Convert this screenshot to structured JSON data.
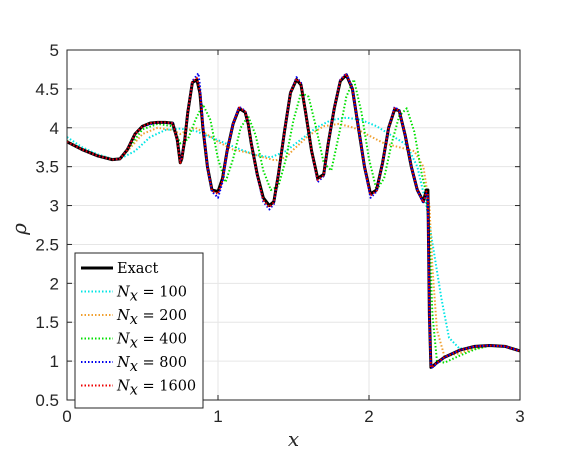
{
  "chart_data": {
    "type": "line",
    "xlabel": "x",
    "ylabel": "ρ",
    "xlim": [
      0,
      3
    ],
    "ylim": [
      0.5,
      5
    ],
    "xticks": [
      "0",
      "1",
      "2",
      "3"
    ],
    "yticks": [
      "0.5",
      "1",
      "1.5",
      "2",
      "2.5",
      "3",
      "3.5",
      "4",
      "4.5",
      "5"
    ],
    "grid": true,
    "legend_position": "bottom-left",
    "series": [
      {
        "name": "Exact",
        "color": "#000000",
        "style": "solid",
        "x": [
          0,
          0.1,
          0.2,
          0.3,
          0.35,
          0.4,
          0.45,
          0.5,
          0.55,
          0.6,
          0.65,
          0.7,
          0.73,
          0.75,
          0.76,
          0.78,
          0.8,
          0.83,
          0.86,
          0.88,
          0.9,
          0.93,
          0.96,
          1.0,
          1.03,
          1.06,
          1.1,
          1.14,
          1.18,
          1.2,
          1.22,
          1.26,
          1.3,
          1.34,
          1.37,
          1.4,
          1.44,
          1.48,
          1.52,
          1.55,
          1.58,
          1.62,
          1.66,
          1.7,
          1.73,
          1.77,
          1.81,
          1.85,
          1.89,
          1.93,
          1.97,
          2.01,
          2.05,
          2.09,
          2.13,
          2.17,
          2.2,
          2.24,
          2.28,
          2.32,
          2.36,
          2.38,
          2.39,
          2.4,
          2.41,
          2.42,
          2.45,
          2.5,
          2.6,
          2.7,
          2.8,
          2.9,
          3.0
        ],
        "y": [
          3.82,
          3.72,
          3.64,
          3.59,
          3.6,
          3.72,
          3.92,
          4.02,
          4.06,
          4.07,
          4.07,
          4.06,
          3.85,
          3.55,
          3.6,
          3.85,
          4.2,
          4.58,
          4.62,
          4.45,
          4.0,
          3.5,
          3.2,
          3.18,
          3.35,
          3.7,
          4.05,
          4.25,
          4.2,
          4.05,
          3.8,
          3.4,
          3.1,
          3.0,
          3.05,
          3.4,
          3.95,
          4.45,
          4.62,
          4.55,
          4.2,
          3.7,
          3.35,
          3.4,
          3.8,
          4.25,
          4.6,
          4.68,
          4.5,
          4.0,
          3.5,
          3.15,
          3.2,
          3.55,
          4.0,
          4.24,
          4.22,
          3.9,
          3.5,
          3.2,
          3.05,
          3.2,
          3.2,
          1.6,
          0.92,
          0.93,
          0.98,
          1.05,
          1.14,
          1.19,
          1.2,
          1.19,
          1.13
        ]
      },
      {
        "name": "N_x = 100",
        "color": "#00e5e5",
        "style": "dotted",
        "x": [
          0,
          0.1,
          0.2,
          0.3,
          0.35,
          0.45,
          0.55,
          0.65,
          0.75,
          0.85,
          0.95,
          1.05,
          1.15,
          1.25,
          1.35,
          1.45,
          1.55,
          1.65,
          1.75,
          1.85,
          1.95,
          2.05,
          2.15,
          2.25,
          2.32,
          2.38,
          2.43,
          2.48,
          2.53,
          2.6,
          2.7,
          2.8,
          2.9,
          3.0
        ],
        "y": [
          3.88,
          3.75,
          3.66,
          3.6,
          3.6,
          3.7,
          3.88,
          3.97,
          3.99,
          3.96,
          3.88,
          3.8,
          3.72,
          3.65,
          3.62,
          3.7,
          3.85,
          4.0,
          4.1,
          4.13,
          4.1,
          4.02,
          3.9,
          3.78,
          3.5,
          3.0,
          2.4,
          1.8,
          1.3,
          1.16,
          1.17,
          1.2,
          1.19,
          1.14
        ]
      },
      {
        "name": "N_x = 200",
        "color": "#f0a030",
        "style": "dotted",
        "x": [
          0,
          0.1,
          0.2,
          0.3,
          0.35,
          0.4,
          0.5,
          0.6,
          0.7,
          0.75,
          0.8,
          0.85,
          0.9,
          1.0,
          1.1,
          1.2,
          1.3,
          1.38,
          1.45,
          1.5,
          1.6,
          1.7,
          1.8,
          1.9,
          2.0,
          2.1,
          2.2,
          2.3,
          2.36,
          2.4,
          2.42,
          2.45,
          2.5,
          2.6,
          2.7,
          2.8,
          2.9,
          3.0
        ],
        "y": [
          3.83,
          3.73,
          3.65,
          3.6,
          3.6,
          3.7,
          3.92,
          4.0,
          3.97,
          3.92,
          3.97,
          4.0,
          3.95,
          3.82,
          3.72,
          3.68,
          3.62,
          3.58,
          3.62,
          3.72,
          3.9,
          4.02,
          4.05,
          4.0,
          3.9,
          3.8,
          3.75,
          3.7,
          3.5,
          3.0,
          2.2,
          1.4,
          1.06,
          1.1,
          1.16,
          1.2,
          1.19,
          1.13
        ]
      },
      {
        "name": "N_x = 400",
        "color": "#00e000",
        "style": "dotted",
        "x": [
          0,
          0.1,
          0.2,
          0.3,
          0.35,
          0.4,
          0.5,
          0.6,
          0.7,
          0.75,
          0.8,
          0.85,
          0.9,
          0.95,
          1.0,
          1.05,
          1.1,
          1.15,
          1.2,
          1.25,
          1.3,
          1.35,
          1.4,
          1.45,
          1.5,
          1.55,
          1.6,
          1.65,
          1.7,
          1.75,
          1.8,
          1.85,
          1.9,
          1.95,
          2.0,
          2.05,
          2.1,
          2.15,
          2.2,
          2.25,
          2.3,
          2.35,
          2.38,
          2.4,
          2.42,
          2.45,
          2.5,
          2.6,
          2.7,
          2.8,
          2.9,
          3.0
        ],
        "y": [
          3.83,
          3.72,
          3.64,
          3.59,
          3.6,
          3.72,
          3.98,
          4.05,
          4.02,
          3.8,
          3.85,
          4.1,
          4.3,
          4.1,
          3.6,
          3.3,
          3.6,
          4.0,
          4.15,
          3.9,
          3.45,
          3.2,
          3.25,
          3.6,
          4.1,
          4.45,
          4.4,
          4.0,
          3.55,
          3.45,
          3.9,
          4.4,
          4.62,
          4.2,
          3.6,
          3.2,
          3.35,
          3.8,
          4.15,
          4.25,
          3.95,
          3.4,
          3.15,
          2.6,
          1.6,
          1.0,
          0.98,
          1.07,
          1.15,
          1.2,
          1.19,
          1.13
        ]
      },
      {
        "name": "N_x = 800",
        "color": "#0000ee",
        "style": "dotted",
        "x": [
          0,
          0.1,
          0.2,
          0.3,
          0.35,
          0.4,
          0.45,
          0.5,
          0.6,
          0.7,
          0.73,
          0.75,
          0.76,
          0.78,
          0.8,
          0.83,
          0.87,
          0.88,
          0.9,
          0.93,
          0.96,
          1.0,
          1.03,
          1.06,
          1.1,
          1.14,
          1.18,
          1.2,
          1.22,
          1.26,
          1.3,
          1.34,
          1.37,
          1.4,
          1.44,
          1.48,
          1.52,
          1.55,
          1.58,
          1.62,
          1.66,
          1.7,
          1.73,
          1.77,
          1.81,
          1.85,
          1.89,
          1.93,
          1.97,
          2.01,
          2.05,
          2.09,
          2.13,
          2.17,
          2.2,
          2.24,
          2.28,
          2.32,
          2.36,
          2.38,
          2.39,
          2.4,
          2.41,
          2.42,
          2.45,
          2.5,
          2.6,
          2.7,
          2.8,
          2.9,
          3.0
        ],
        "y": [
          3.82,
          3.72,
          3.64,
          3.59,
          3.6,
          3.72,
          3.92,
          4.02,
          4.07,
          4.06,
          3.85,
          3.57,
          3.62,
          3.85,
          4.2,
          4.6,
          4.7,
          4.55,
          4.05,
          3.5,
          3.18,
          3.1,
          3.3,
          3.7,
          4.05,
          4.27,
          4.22,
          4.05,
          3.8,
          3.38,
          3.05,
          2.95,
          3.02,
          3.4,
          3.95,
          4.45,
          4.65,
          4.58,
          4.2,
          3.7,
          3.3,
          3.38,
          3.8,
          4.25,
          4.62,
          4.7,
          4.5,
          4.0,
          3.5,
          3.1,
          3.18,
          3.55,
          4.0,
          4.27,
          4.22,
          3.9,
          3.5,
          3.2,
          3.03,
          3.15,
          3.1,
          1.5,
          0.93,
          0.92,
          0.97,
          1.05,
          1.14,
          1.19,
          1.2,
          1.19,
          1.13
        ]
      },
      {
        "name": "N_x = 1600",
        "color": "#ee0000",
        "style": "dotted",
        "x": [
          0,
          0.1,
          0.2,
          0.3,
          0.35,
          0.4,
          0.45,
          0.5,
          0.55,
          0.6,
          0.65,
          0.7,
          0.73,
          0.75,
          0.76,
          0.78,
          0.8,
          0.83,
          0.86,
          0.88,
          0.9,
          0.93,
          0.96,
          1.0,
          1.03,
          1.06,
          1.1,
          1.14,
          1.18,
          1.2,
          1.22,
          1.26,
          1.3,
          1.34,
          1.37,
          1.4,
          1.44,
          1.48,
          1.52,
          1.55,
          1.58,
          1.62,
          1.66,
          1.7,
          1.73,
          1.77,
          1.81,
          1.85,
          1.89,
          1.93,
          1.97,
          2.01,
          2.05,
          2.09,
          2.13,
          2.17,
          2.2,
          2.24,
          2.28,
          2.32,
          2.36,
          2.38,
          2.39,
          2.4,
          2.41,
          2.42,
          2.45,
          2.5,
          2.6,
          2.7,
          2.8,
          2.9,
          3.0
        ],
        "y": [
          3.82,
          3.72,
          3.64,
          3.59,
          3.6,
          3.72,
          3.92,
          4.02,
          4.06,
          4.07,
          4.07,
          4.06,
          3.85,
          3.55,
          3.6,
          3.85,
          4.2,
          4.59,
          4.64,
          4.47,
          4.02,
          3.5,
          3.19,
          3.15,
          3.33,
          3.7,
          4.05,
          4.26,
          4.21,
          4.05,
          3.8,
          3.39,
          3.07,
          2.98,
          3.04,
          3.4,
          3.95,
          4.45,
          4.63,
          4.56,
          4.2,
          3.7,
          3.33,
          3.39,
          3.8,
          4.25,
          4.61,
          4.69,
          4.5,
          4.0,
          3.5,
          3.13,
          3.19,
          3.55,
          4.0,
          4.25,
          4.22,
          3.9,
          3.5,
          3.2,
          3.04,
          3.18,
          3.15,
          1.55,
          0.92,
          0.93,
          0.98,
          1.05,
          1.14,
          1.19,
          1.2,
          1.19,
          1.13
        ]
      }
    ]
  }
}
